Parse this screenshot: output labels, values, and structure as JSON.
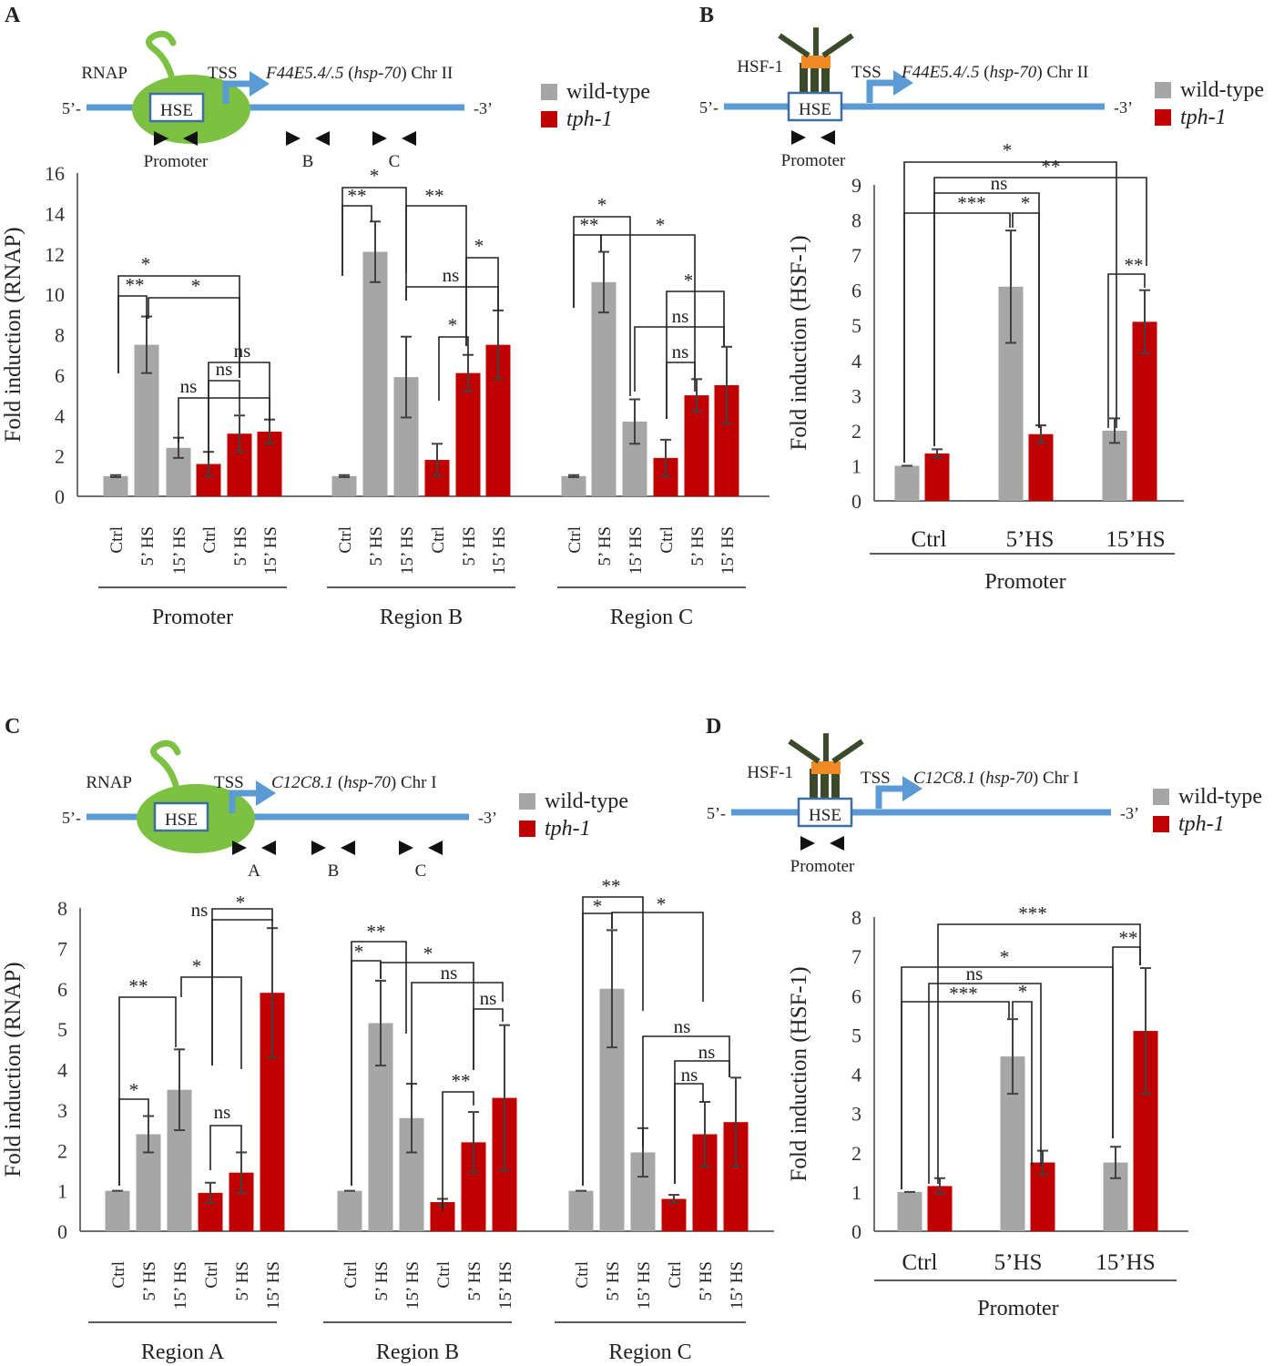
{
  "colors": {
    "wt": "#a6a6a6",
    "mut": "#c00000",
    "dna": "#5b9bd5",
    "axis": "#404040",
    "err": "#404040",
    "rnap": "#7cc142",
    "hsf_body": "#3b4a2b",
    "hsf_center": "#f08a24"
  },
  "legend": {
    "wt": "wild-type",
    "mut": "tph-1"
  },
  "bar_labels": {
    "ctrl": "Ctrl",
    "hs5": "5’ HS",
    "hs15": "15’ HS"
  },
  "panels": [
    {
      "letter": "A",
      "schematic": {
        "protein": "RNAP",
        "hse": "HSE",
        "tss": "TSS",
        "gene": "F44E5.4/.5",
        "hsp": "hsp-70",
        "chr": "Chr II",
        "five": "5’-",
        "three": "-3’",
        "primers": [
          "Promoter",
          "B",
          "C"
        ]
      },
      "ylabel": "Fold induction (RNAP)",
      "yticks": [
        "0",
        "2",
        "4",
        "6",
        "8",
        "10",
        "12",
        "14",
        "16"
      ],
      "sigs": [
        "*",
        "**",
        "*",
        "ns",
        "ns",
        "ns",
        "*",
        "**",
        "**",
        "ns",
        "*",
        "*",
        "*",
        "**",
        "*",
        "*",
        "ns",
        "ns"
      ]
    },
    {
      "letter": "B",
      "schematic": {
        "protein": "HSF-1",
        "hse": "HSE",
        "tss": "TSS",
        "gene": "F44E5.4/.5",
        "hsp": "hsp-70",
        "chr": "Chr II",
        "five": "5’-",
        "three": "-3’",
        "primers": [
          "Promoter"
        ]
      },
      "ylabel": "Fold induction (HSF-1)",
      "yticks": [
        "0",
        "1",
        "2",
        "3",
        "4",
        "5",
        "6",
        "7",
        "8",
        "9"
      ],
      "group_labels": [
        "Ctrl",
        "5’HS",
        "15’HS"
      ],
      "sigs": [
        "*",
        "**",
        "ns",
        "***",
        "*",
        "**"
      ]
    },
    {
      "letter": "C",
      "schematic": {
        "protein": "RNAP",
        "hse": "HSE",
        "tss": "TSS",
        "gene": "C12C8.1",
        "hsp": "hsp-70",
        "chr": "Chr I",
        "five": "5’-",
        "three": "-3’",
        "primers": [
          "A",
          "B",
          "C"
        ]
      },
      "ylabel": "Fold induction (RNAP)",
      "yticks": [
        "0",
        "1",
        "2",
        "3",
        "4",
        "5",
        "6",
        "7",
        "8"
      ],
      "sigs": [
        "ns",
        "*",
        "*",
        "**",
        "*",
        "ns",
        "**",
        "*",
        "*",
        "ns",
        "**",
        "ns",
        "**",
        "*",
        "*",
        "ns",
        "ns",
        "ns"
      ]
    },
    {
      "letter": "D",
      "schematic": {
        "protein": "HSF-1",
        "hse": "HSE",
        "tss": "TSS",
        "gene": "C12C8.1",
        "hsp": "hsp-70",
        "chr": "Chr I",
        "five": "5’-",
        "three": "-3’",
        "primers": [
          "Promoter"
        ]
      },
      "ylabel": "Fold induction (HSF-1)",
      "yticks": [
        "0",
        "1",
        "2",
        "3",
        "4",
        "5",
        "6",
        "7",
        "8"
      ],
      "group_labels": [
        "Ctrl",
        "5’HS",
        "15’HS"
      ],
      "sigs": [
        "***",
        "**",
        "*",
        "ns",
        "***",
        "*"
      ]
    }
  ],
  "chart_data": [
    {
      "panel": "A",
      "type": "bar",
      "ylabel": "Fold induction (RNAP)",
      "ylim": [
        0,
        16
      ],
      "groups": [
        "Promoter",
        "Region B",
        "Region C"
      ],
      "categories": [
        "Ctrl",
        "5’ HS",
        "15’ HS",
        "Ctrl",
        "5’ HS",
        "15’ HS"
      ],
      "series": [
        {
          "name": "Promoter",
          "values": [
            1.0,
            7.5,
            2.4,
            1.6,
            3.1,
            3.2
          ],
          "errors": [
            0.05,
            1.4,
            0.5,
            0.6,
            0.9,
            0.6
          ]
        },
        {
          "name": "Region B",
          "values": [
            1.0,
            12.1,
            5.9,
            1.8,
            6.1,
            7.5
          ],
          "errors": [
            0.05,
            1.5,
            2.0,
            0.8,
            0.9,
            1.7
          ]
        },
        {
          "name": "Region C",
          "values": [
            1.0,
            10.6,
            3.7,
            1.9,
            5.0,
            5.5
          ],
          "errors": [
            0.05,
            1.5,
            1.1,
            0.9,
            0.8,
            1.9
          ]
        }
      ]
    },
    {
      "panel": "B",
      "type": "bar",
      "ylabel": "Fold induction (HSF-1)",
      "ylim": [
        0,
        9
      ],
      "group": "Promoter",
      "categories": [
        "Ctrl",
        "5’HS",
        "15’HS"
      ],
      "series": [
        {
          "name": "wild-type",
          "values": [
            1.0,
            6.1,
            2.0
          ],
          "errors": [
            0.02,
            1.6,
            0.35
          ]
        },
        {
          "name": "tph-1",
          "values": [
            1.35,
            1.9,
            5.1
          ],
          "errors": [
            0.12,
            0.25,
            0.9
          ]
        }
      ]
    },
    {
      "panel": "C",
      "type": "bar",
      "ylabel": "Fold induction (RNAP)",
      "ylim": [
        0,
        8
      ],
      "groups": [
        "Region A",
        "Region B",
        "Region C"
      ],
      "categories": [
        "Ctrl",
        "5’ HS",
        "15’ HS",
        "Ctrl",
        "5’ HS",
        "15’ HS"
      ],
      "series": [
        {
          "name": "Region A",
          "values": [
            1.0,
            2.4,
            3.5,
            0.95,
            1.45,
            5.9
          ],
          "errors": [
            0.02,
            0.45,
            1.0,
            0.25,
            0.5,
            1.6
          ]
        },
        {
          "name": "Region B",
          "values": [
            1.0,
            5.15,
            2.8,
            0.72,
            2.2,
            3.3
          ],
          "errors": [
            0.02,
            1.05,
            0.85,
            0.08,
            0.75,
            1.8
          ]
        },
        {
          "name": "Region C",
          "values": [
            1.0,
            6.0,
            1.95,
            0.8,
            2.4,
            2.7
          ],
          "errors": [
            0.02,
            1.45,
            0.6,
            0.1,
            0.8,
            1.1
          ]
        }
      ]
    },
    {
      "panel": "D",
      "type": "bar",
      "ylabel": "Fold induction (HSF-1)",
      "ylim": [
        0,
        8
      ],
      "group": "Promoter",
      "categories": [
        "Ctrl",
        "5’HS",
        "15’HS"
      ],
      "series": [
        {
          "name": "wild-type",
          "values": [
            1.0,
            4.45,
            1.75
          ],
          "errors": [
            0.02,
            0.95,
            0.4
          ]
        },
        {
          "name": "tph-1",
          "values": [
            1.15,
            1.75,
            5.1
          ],
          "errors": [
            0.2,
            0.3,
            1.6
          ]
        }
      ]
    }
  ]
}
